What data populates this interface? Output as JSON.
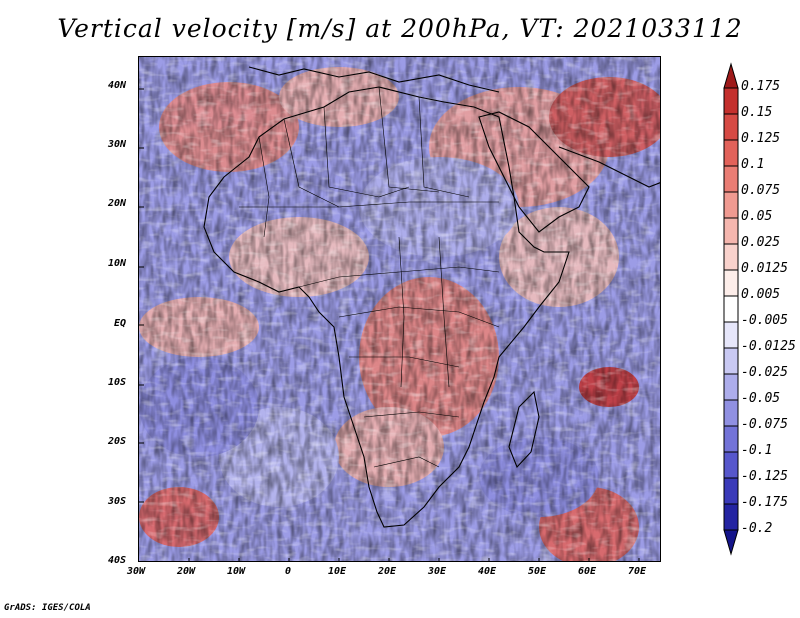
{
  "title": "Vertical velocity [m/s] at 200hPa, VT: 2021033112",
  "credit": "GrADS: IGES/COLA",
  "map": {
    "region": "Africa and surrounding oceans",
    "lat_labels": [
      "40N",
      "30N",
      "20N",
      "10N",
      "EQ",
      "10S",
      "20S",
      "30S",
      "40S"
    ],
    "lon_labels": [
      "30W",
      "20W",
      "10W",
      "0",
      "10E",
      "20E",
      "30E",
      "40E",
      "50E",
      "60E",
      "70E"
    ]
  },
  "colorbar": {
    "labels": [
      "0.175",
      "0.15",
      "0.125",
      "0.1",
      "0.075",
      "0.05",
      "0.025",
      "0.0125",
      "0.005",
      "-0.005",
      "-0.0125",
      "-0.025",
      "-0.05",
      "-0.075",
      "-0.1",
      "-0.125",
      "-0.175",
      "-0.2"
    ],
    "colors": [
      "#9e1a1a",
      "#c4302d",
      "#d64a44",
      "#e2625a",
      "#ea7d74",
      "#f09a91",
      "#f5b6ae",
      "#f9d2cc",
      "#fdeeea",
      "#ffffff",
      "#e6e6fa",
      "#c9c9f3",
      "#adadeb",
      "#9090e2",
      "#7373d8",
      "#5757cc",
      "#3a3ab9",
      "#2424a2",
      "#14148a"
    ]
  }
}
